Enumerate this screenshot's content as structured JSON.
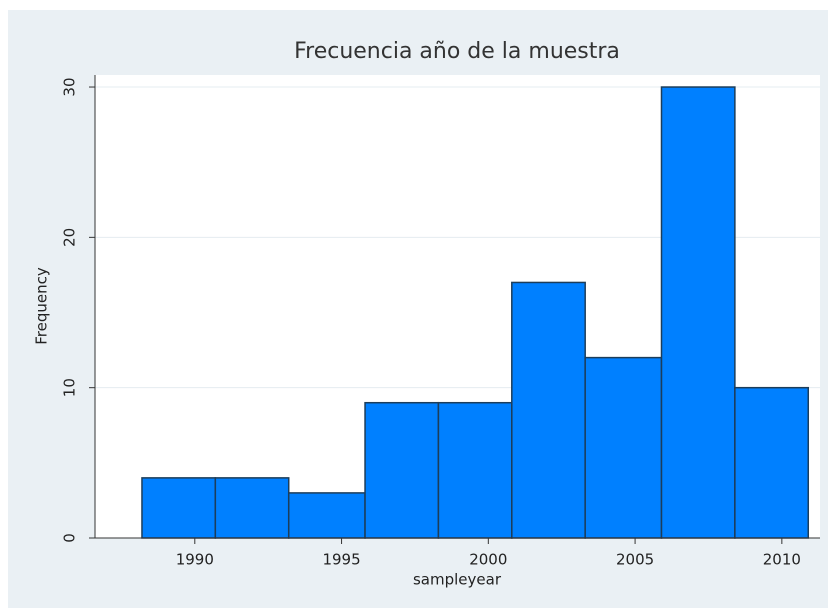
{
  "chart_data": {
    "type": "histogram",
    "title": "Frecuencia año de la muestra",
    "x_label": "sampleyear",
    "y_label": "Frequency",
    "bins": [
      1988.2,
      1990.7,
      1993.2,
      1995.8,
      1998.3,
      2000.8,
      2003.3,
      2005.9,
      2008.4,
      2010.9
    ],
    "values": [
      4,
      4,
      3,
      9,
      9,
      17,
      12,
      30,
      10
    ],
    "color": "#0080ff",
    "xlim": [
      1986.6,
      2011.3
    ],
    "xticks": [
      1990,
      1995,
      2000,
      2005,
      2010
    ],
    "ylim": [
      0,
      30.8
    ],
    "yticks": [
      0,
      10,
      20,
      30
    ],
    "grid": true
  }
}
